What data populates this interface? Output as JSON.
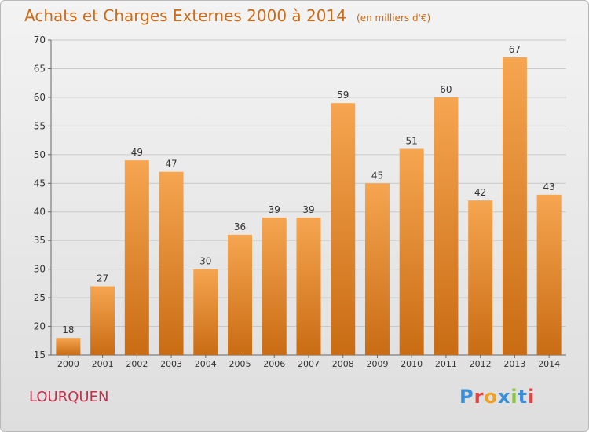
{
  "header": {
    "title": "Achats et Charges Externes 2000 à 2014",
    "subtitle": "(en milliers d'€)"
  },
  "location": "LOURQUEN",
  "brand": {
    "name": "Proxiti",
    "letter_colors": [
      "#3a8fd8",
      "#e04545",
      "#f0a020",
      "#3a8fd8",
      "#8cc63f",
      "#3a8fd8",
      "#e04545"
    ]
  },
  "colors": {
    "bar_top": "#f6a550",
    "bar_bottom": "#c96c14",
    "title": "#cc6a16",
    "location": "#c4304c",
    "grid": "#c8c8c8"
  },
  "chart_data": {
    "type": "bar",
    "title": "Achats et Charges Externes 2000 à 2014",
    "subtitle": "(en milliers d'€)",
    "categories": [
      "2000",
      "2001",
      "2002",
      "2003",
      "2004",
      "2005",
      "2006",
      "2007",
      "2008",
      "2009",
      "2010",
      "2011",
      "2012",
      "2013",
      "2014"
    ],
    "values": [
      18,
      27,
      49,
      47,
      30,
      36,
      39,
      39,
      59,
      45,
      51,
      60,
      42,
      67,
      43
    ],
    "ylim": [
      15,
      70
    ],
    "yticks": [
      15,
      20,
      25,
      30,
      35,
      40,
      45,
      50,
      55,
      60,
      65,
      70
    ],
    "grid": true,
    "xlabel": "",
    "ylabel": ""
  }
}
